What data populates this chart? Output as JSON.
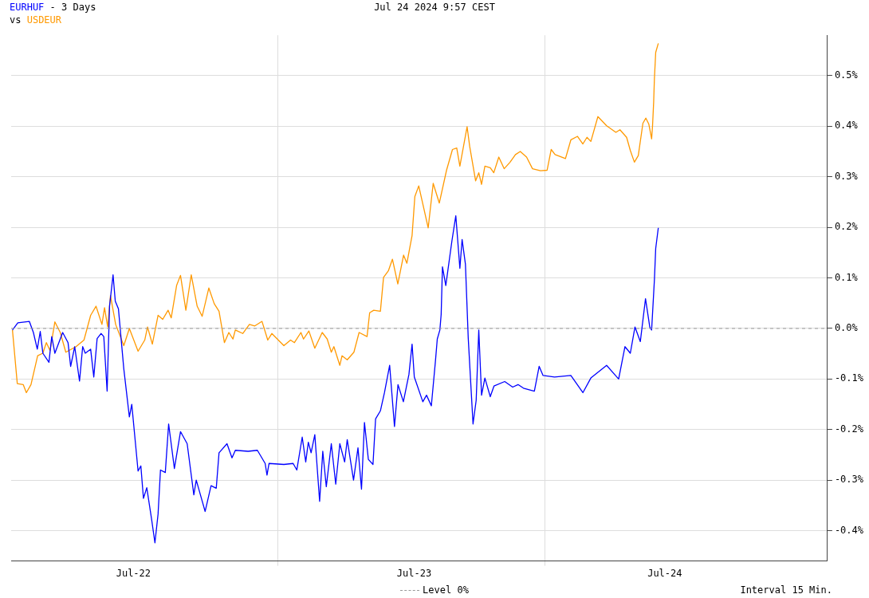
{
  "chart_data": {
    "type": "line",
    "title": "- 3 Days",
    "subtitle": "Jul 24 2024 9:57 CEST",
    "legend_title": "vs",
    "annotations": [
      "Interval 15 Min."
    ],
    "legend": "bottom",
    "grid": true,
    "marker": "none",
    "line_style": "solid",
    "xlim": [
      "2024-07-22T00:00",
      "2024-07-25T01:26"
    ],
    "xticks": [
      {
        "value": "2024-07-22T11:00",
        "label": "Jul-22"
      },
      {
        "value": "2024-07-23T00:00",
        "label": null
      },
      {
        "value": "2024-07-23T12:15",
        "label": "Jul-23"
      },
      {
        "value": "2024-07-24T00:00",
        "label": null
      },
      {
        "value": "2024-07-24T10:48",
        "label": "Jul-24"
      }
    ],
    "ylim": [
      -0.46,
      0.58
    ],
    "yticks": [
      {
        "value": -0.4,
        "label": "-0.4%"
      },
      {
        "value": -0.3,
        "label": "-0.3%"
      },
      {
        "value": -0.2,
        "label": "-0.2%"
      },
      {
        "value": -0.1,
        "label": "-0.1%"
      },
      {
        "value": 0,
        "label": "0.0%"
      },
      {
        "value": 0.1,
        "label": "0.1%"
      },
      {
        "value": 0.2,
        "label": "0.2%"
      },
      {
        "value": 0.3,
        "label": "0.3%"
      },
      {
        "value": 0.4,
        "label": "0.4%"
      },
      {
        "value": 0.5,
        "label": "0.5%"
      }
    ],
    "ref_lines": [
      {
        "axis": "y",
        "value": 0,
        "label": "Level 0%",
        "color": "#999999",
        "line_style": "dashed"
      }
    ],
    "series": [
      {
        "name": "EURHUF",
        "color": "#0000ff",
        "x": [
          "2024-07-22T00:07",
          "2024-07-22T00:36",
          "2024-07-22T01:38",
          "2024-07-22T02:00",
          "2024-07-22T02:21",
          "2024-07-22T02:37",
          "2024-07-22T02:51",
          "2024-07-22T03:24",
          "2024-07-22T03:39",
          "2024-07-22T03:56",
          "2024-07-22T04:38",
          "2024-07-22T05:07",
          "2024-07-22T05:21",
          "2024-07-22T05:43",
          "2024-07-22T06:09",
          "2024-07-22T06:26",
          "2024-07-22T06:40",
          "2024-07-22T07:09",
          "2024-07-22T07:26",
          "2024-07-22T07:44",
          "2024-07-22T08:05",
          "2024-07-22T08:20",
          "2024-07-22T08:38",
          "2024-07-22T08:51",
          "2024-07-22T09:10",
          "2024-07-22T09:22",
          "2024-07-22T09:39",
          "2024-07-22T10:08",
          "2024-07-22T10:38",
          "2024-07-22T10:51",
          "2024-07-22T11:25",
          "2024-07-22T11:40",
          "2024-07-22T11:54",
          "2024-07-22T12:12",
          "2024-07-22T12:37",
          "2024-07-22T12:56",
          "2024-07-22T13:13",
          "2024-07-22T13:26",
          "2024-07-22T13:52",
          "2024-07-22T14:10",
          "2024-07-22T14:41",
          "2024-07-22T15:14",
          "2024-07-22T15:50",
          "2024-07-22T16:26",
          "2024-07-22T16:39",
          "2024-07-22T17:27",
          "2024-07-22T17:59",
          "2024-07-22T18:27",
          "2024-07-22T18:42",
          "2024-07-22T19:25",
          "2024-07-22T19:52",
          "2024-07-22T20:10",
          "2024-07-22T21:19",
          "2024-07-22T22:09",
          "2024-07-22T22:51",
          "2024-07-22T23:01",
          "2024-07-22T23:12",
          "2024-07-23T00:32",
          "2024-07-23T01:22",
          "2024-07-23T01:42",
          "2024-07-23T02:11",
          "2024-07-23T02:30",
          "2024-07-23T02:44",
          "2024-07-23T02:59",
          "2024-07-23T03:19",
          "2024-07-23T03:45",
          "2024-07-23T04:02",
          "2024-07-23T04:21",
          "2024-07-23T04:48",
          "2024-07-23T05:12",
          "2024-07-23T05:34",
          "2024-07-23T06:00",
          "2024-07-23T06:14",
          "2024-07-23T06:48",
          "2024-07-23T07:12",
          "2024-07-23T07:31",
          "2024-07-23T07:47",
          "2024-07-23T08:08",
          "2024-07-23T08:33",
          "2024-07-23T08:47",
          "2024-07-23T09:13",
          "2024-07-23T09:35",
          "2024-07-23T10:03",
          "2024-07-23T10:29",
          "2024-07-23T10:48",
          "2024-07-23T11:17",
          "2024-07-23T11:47",
          "2024-07-23T12:04",
          "2024-07-23T12:16",
          "2024-07-23T13:02",
          "2024-07-23T13:22",
          "2024-07-23T13:48",
          "2024-07-23T14:10",
          "2024-07-23T14:20",
          "2024-07-23T14:34",
          "2024-07-23T14:41",
          "2024-07-23T14:48",
          "2024-07-23T15:06",
          "2024-07-23T15:39",
          "2024-07-23T16:00",
          "2024-07-23T16:22",
          "2024-07-23T16:34",
          "2024-07-23T16:52",
          "2024-07-23T17:07",
          "2024-07-23T17:33",
          "2024-07-23T17:50",
          "2024-07-23T18:04",
          "2024-07-23T18:19",
          "2024-07-23T18:37",
          "2024-07-23T19:06",
          "2024-07-23T19:26",
          "2024-07-23T20:24",
          "2024-07-23T21:07",
          "2024-07-23T21:36",
          "2024-07-23T22:05",
          "2024-07-23T23:04",
          "2024-07-23T23:30",
          "2024-07-23T23:51",
          "2024-07-24T00:53",
          "2024-07-24T02:21",
          "2024-07-24T03:26",
          "2024-07-24T04:09",
          "2024-07-24T05:34",
          "2024-07-24T06:39",
          "2024-07-24T07:13",
          "2024-07-24T07:42",
          "2024-07-24T08:07",
          "2024-07-24T08:36",
          "2024-07-24T09:04",
          "2024-07-24T09:27",
          "2024-07-24T09:37",
          "2024-07-24T09:52",
          "2024-07-24T09:59",
          "2024-07-24T10:13"
        ],
        "values": [
          -0.003,
          0.011,
          0.014,
          -0.008,
          -0.041,
          -0.006,
          -0.049,
          -0.067,
          -0.016,
          -0.049,
          -0.008,
          -0.028,
          -0.075,
          -0.036,
          -0.104,
          -0.036,
          -0.049,
          -0.041,
          -0.096,
          -0.02,
          -0.01,
          -0.016,
          -0.124,
          0.044,
          0.106,
          0.054,
          0.039,
          -0.08,
          -0.175,
          -0.15,
          -0.282,
          -0.272,
          -0.336,
          -0.315,
          -0.375,
          -0.424,
          -0.367,
          -0.28,
          -0.285,
          -0.189,
          -0.277,
          -0.204,
          -0.228,
          -0.329,
          -0.3,
          -0.362,
          -0.311,
          -0.316,
          -0.246,
          -0.228,
          -0.256,
          -0.241,
          -0.243,
          -0.241,
          -0.267,
          -0.29,
          -0.267,
          -0.269,
          -0.267,
          -0.28,
          -0.215,
          -0.264,
          -0.225,
          -0.246,
          -0.21,
          -0.342,
          -0.243,
          -0.313,
          -0.228,
          -0.308,
          -0.228,
          -0.264,
          -0.22,
          -0.3,
          -0.236,
          -0.318,
          -0.186,
          -0.259,
          -0.269,
          -0.179,
          -0.163,
          -0.127,
          -0.073,
          -0.194,
          -0.111,
          -0.145,
          -0.091,
          -0.031,
          -0.096,
          -0.145,
          -0.132,
          -0.153,
          -0.065,
          -0.021,
          -0.003,
          0.028,
          0.122,
          0.085,
          0.173,
          0.223,
          0.119,
          0.176,
          0.127,
          -0.018,
          -0.189,
          -0.142,
          -0.003,
          -0.132,
          -0.098,
          -0.135,
          -0.114,
          -0.105,
          -0.116,
          -0.111,
          -0.118,
          -0.124,
          -0.075,
          -0.093,
          -0.096,
          -0.093,
          -0.127,
          -0.098,
          -0.073,
          -0.1,
          -0.036,
          -0.049,
          0.003,
          -0.026,
          0.059,
          0.003,
          -0.003,
          0.096,
          0.158,
          0.199
        ]
      },
      {
        "name": "USDEUR",
        "color": "#ff9900",
        "x": [
          "2024-07-22T00:07",
          "2024-07-22T00:33",
          "2024-07-22T01:05",
          "2024-07-22T01:22",
          "2024-07-22T01:47",
          "2024-07-22T02:23",
          "2024-07-22T02:51",
          "2024-07-22T03:10",
          "2024-07-22T03:30",
          "2024-07-22T03:56",
          "2024-07-22T04:25",
          "2024-07-22T04:55",
          "2024-07-22T05:50",
          "2024-07-22T06:33",
          "2024-07-22T07:09",
          "2024-07-22T07:38",
          "2024-07-22T08:10",
          "2024-07-22T08:24",
          "2024-07-22T08:41",
          "2024-07-22T08:56",
          "2024-07-22T09:24",
          "2024-07-22T10:08",
          "2024-07-22T10:38",
          "2024-07-22T11:25",
          "2024-07-22T12:01",
          "2024-07-22T12:16",
          "2024-07-22T12:42",
          "2024-07-22T13:13",
          "2024-07-22T13:38",
          "2024-07-22T14:07",
          "2024-07-22T14:24",
          "2024-07-22T14:53",
          "2024-07-22T15:14",
          "2024-07-22T15:43",
          "2024-07-22T16:12",
          "2024-07-22T16:44",
          "2024-07-22T17:11",
          "2024-07-22T17:47",
          "2024-07-22T18:16",
          "2024-07-22T18:42",
          "2024-07-22T19:11",
          "2024-07-22T19:35",
          "2024-07-22T19:57",
          "2024-07-22T20:10",
          "2024-07-22T20:50",
          "2024-07-22T21:26",
          "2024-07-22T21:55",
          "2024-07-22T22:34",
          "2024-07-22T23:05",
          "2024-07-22T23:27",
          "2024-07-23T00:32",
          "2024-07-23T01:08",
          "2024-07-23T01:29",
          "2024-07-23T02:04",
          "2024-07-23T02:18",
          "2024-07-23T02:47",
          "2024-07-23T03:19",
          "2024-07-23T03:59",
          "2024-07-23T04:26",
          "2024-07-23T04:48",
          "2024-07-23T05:02",
          "2024-07-23T05:34",
          "2024-07-23T05:46",
          "2024-07-23T06:14",
          "2024-07-23T06:50",
          "2024-07-23T07:18",
          "2024-07-23T08:01",
          "2024-07-23T08:15",
          "2024-07-23T08:37",
          "2024-07-23T09:13",
          "2024-07-23T09:30",
          "2024-07-23T09:56",
          "2024-07-23T10:18",
          "2024-07-23T10:47",
          "2024-07-23T11:18",
          "2024-07-23T11:36",
          "2024-07-23T12:04",
          "2024-07-23T12:19",
          "2024-07-23T12:40",
          "2024-07-23T13:31",
          "2024-07-23T13:58",
          "2024-07-23T14:31",
          "2024-07-23T15:10",
          "2024-07-23T15:42",
          "2024-07-23T16:05",
          "2024-07-23T16:22",
          "2024-07-23T17:01",
          "2024-07-23T17:15",
          "2024-07-23T17:47",
          "2024-07-23T18:04",
          "2024-07-23T18:19",
          "2024-07-23T18:37",
          "2024-07-23T19:06",
          "2024-07-23T19:25",
          "2024-07-23T19:52",
          "2024-07-23T20:21",
          "2024-07-23T20:53",
          "2024-07-23T21:22",
          "2024-07-23T21:48",
          "2024-07-23T22:22",
          "2024-07-23T22:54",
          "2024-07-23T23:37",
          "2024-07-24T00:13",
          "2024-07-24T00:35",
          "2024-07-24T00:56",
          "2024-07-24T01:52",
          "2024-07-24T02:21",
          "2024-07-24T02:57",
          "2024-07-24T03:26",
          "2024-07-24T03:48",
          "2024-07-24T04:09",
          "2024-07-24T04:47",
          "2024-07-24T05:34",
          "2024-07-24T06:24",
          "2024-07-24T06:46",
          "2024-07-24T07:22",
          "2024-07-24T07:42",
          "2024-07-24T08:04",
          "2024-07-24T08:25",
          "2024-07-24T08:50",
          "2024-07-24T09:06",
          "2024-07-24T09:22",
          "2024-07-24T09:37",
          "2024-07-24T09:42",
          "2024-07-24T09:48",
          "2024-07-24T09:52",
          "2024-07-24T09:59",
          "2024-07-24T10:13"
        ],
        "values": [
          -0.003,
          -0.109,
          -0.111,
          -0.127,
          -0.111,
          -0.054,
          -0.049,
          -0.028,
          -0.044,
          0.013,
          -0.008,
          -0.047,
          -0.036,
          -0.023,
          0.026,
          0.044,
          0.008,
          0.041,
          0.003,
          0.065,
          0.008,
          -0.034,
          0.0,
          -0.045,
          -0.023,
          0.003,
          -0.031,
          0.026,
          0.018,
          0.036,
          0.021,
          0.085,
          0.105,
          0.036,
          0.106,
          0.044,
          0.024,
          0.08,
          0.049,
          0.034,
          -0.028,
          -0.008,
          -0.021,
          -0.003,
          -0.01,
          0.008,
          0.005,
          0.014,
          -0.023,
          -0.01,
          -0.034,
          -0.023,
          -0.028,
          -0.008,
          -0.021,
          -0.005,
          -0.039,
          -0.008,
          -0.021,
          -0.047,
          -0.036,
          -0.073,
          -0.054,
          -0.062,
          -0.047,
          -0.008,
          -0.016,
          0.031,
          0.036,
          0.034,
          0.101,
          0.114,
          0.137,
          0.088,
          0.145,
          0.129,
          0.184,
          0.261,
          0.282,
          0.199,
          0.287,
          0.248,
          0.313,
          0.354,
          0.357,
          0.321,
          0.399,
          0.36,
          0.292,
          0.308,
          0.285,
          0.321,
          0.318,
          0.308,
          0.339,
          0.316,
          0.329,
          0.344,
          0.35,
          0.339,
          0.316,
          0.312,
          0.313,
          0.354,
          0.344,
          0.336,
          0.373,
          0.38,
          0.365,
          0.378,
          0.37,
          0.419,
          0.401,
          0.388,
          0.393,
          0.378,
          0.352,
          0.329,
          0.342,
          0.406,
          0.416,
          0.404,
          0.375,
          0.401,
          0.448,
          0.494,
          0.546,
          0.564
        ]
      }
    ]
  }
}
